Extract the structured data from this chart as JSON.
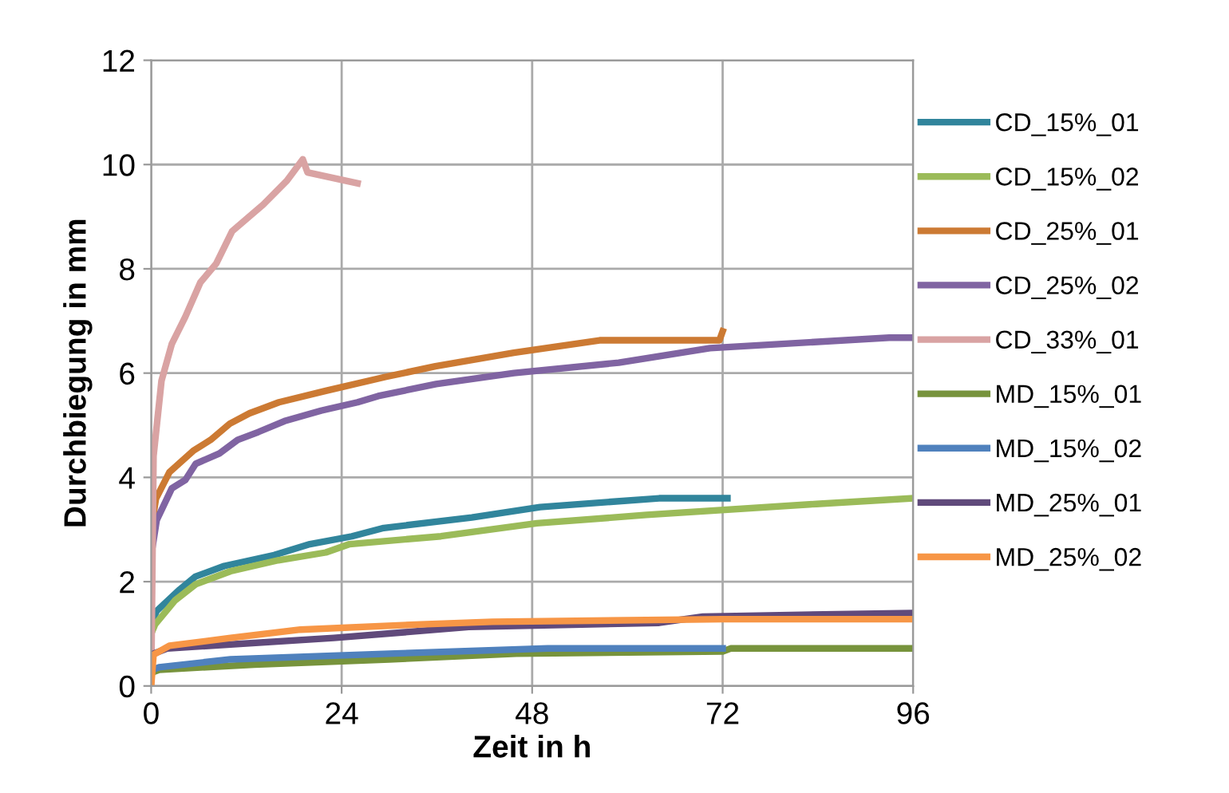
{
  "chart_data": {
    "type": "line",
    "xlabel": "Zeit in h",
    "ylabel": "Durchbiegung in mm",
    "xlim": [
      0,
      96
    ],
    "ylim": [
      0,
      12
    ],
    "xticks": [
      0,
      24,
      48,
      72,
      96
    ],
    "yticks": [
      0,
      2,
      4,
      6,
      8,
      10,
      12
    ],
    "grid": true,
    "legend": "right",
    "marker": "none",
    "line_style": "solid",
    "series": [
      {
        "name": "CD_15%_01",
        "color": "#31859c",
        "x": [
          0,
          0.7,
          3.6,
          5.6,
          9.2,
          15.5,
          20,
          25.3,
          29.3,
          40.4,
          49,
          64,
          72.6
        ],
        "values": [
          1.2,
          1.44,
          1.85,
          2.1,
          2.3,
          2.51,
          2.72,
          2.87,
          3.03,
          3.23,
          3.43,
          3.6,
          3.6
        ]
      },
      {
        "name": "CD_15%_02",
        "color": "#9bbb59",
        "x": [
          0,
          0.5,
          3,
          5.6,
          10,
          16,
          22,
          25,
          36.5,
          48.6,
          62.4,
          83.8,
          96
        ],
        "values": [
          1.0,
          1.18,
          1.64,
          1.95,
          2.2,
          2.41,
          2.56,
          2.72,
          2.87,
          3.12,
          3.28,
          3.49,
          3.6
        ]
      },
      {
        "name": "CD_25%_01",
        "color": "#cc7a33",
        "x": [
          0,
          0.6,
          2.3,
          5.3,
          7.5,
          9.9,
          12.4,
          16.1,
          22,
          29.6,
          35.8,
          45.7,
          56.5,
          71.6,
          72
        ],
        "values": [
          3.0,
          3.59,
          4.1,
          4.51,
          4.72,
          5.03,
          5.23,
          5.44,
          5.66,
          5.93,
          6.13,
          6.39,
          6.63,
          6.63,
          6.8
        ]
      },
      {
        "name": "CD_25%_02",
        "color": "#8064a2",
        "x": [
          0,
          0.7,
          2.6,
          4.3,
          5.6,
          8.6,
          10.9,
          13.5,
          16.8,
          21.4,
          26,
          28.6,
          35.9,
          45.7,
          58.9,
          70.4,
          93,
          96
        ],
        "values": [
          2.5,
          3.18,
          3.79,
          3.95,
          4.26,
          4.46,
          4.72,
          4.87,
          5.08,
          5.28,
          5.44,
          5.56,
          5.79,
          6.0,
          6.2,
          6.48,
          6.68,
          6.68
        ]
      },
      {
        "name": "CD_33%_01",
        "color": "#d9a3a3",
        "x": [
          0,
          0.3,
          1.3,
          2.6,
          4.3,
          6.2,
          8.2,
          10.2,
          14.1,
          17.1,
          19.1,
          19.7,
          26
        ],
        "values": [
          0,
          4.41,
          5.85,
          6.56,
          7.08,
          7.74,
          8.1,
          8.72,
          9.23,
          9.69,
          10.1,
          9.85,
          9.64
        ]
      },
      {
        "name": "MD_15%_01",
        "color": "#77933c",
        "x": [
          0,
          1,
          13,
          30,
          46,
          72,
          73,
          96
        ],
        "values": [
          0.25,
          0.31,
          0.41,
          0.51,
          0.62,
          0.66,
          0.72,
          0.72
        ]
      },
      {
        "name": "MD_15%_02",
        "color": "#4f81bd",
        "x": [
          0,
          1,
          10,
          30,
          50,
          72
        ],
        "values": [
          0.3,
          0.36,
          0.51,
          0.62,
          0.72,
          0.72
        ]
      },
      {
        "name": "MD_25%_01",
        "color": "#604a7b",
        "x": [
          0,
          2,
          23,
          40,
          64,
          69.5,
          96
        ],
        "values": [
          0.6,
          0.72,
          0.92,
          1.13,
          1.21,
          1.33,
          1.4
        ]
      },
      {
        "name": "MD_25%_02",
        "color": "#f79646",
        "x": [
          0,
          0.3,
          2.3,
          10,
          18.8,
          34,
          43,
          72,
          96
        ],
        "values": [
          0,
          0.6,
          0.77,
          0.92,
          1.08,
          1.18,
          1.23,
          1.28,
          1.28
        ]
      }
    ]
  }
}
